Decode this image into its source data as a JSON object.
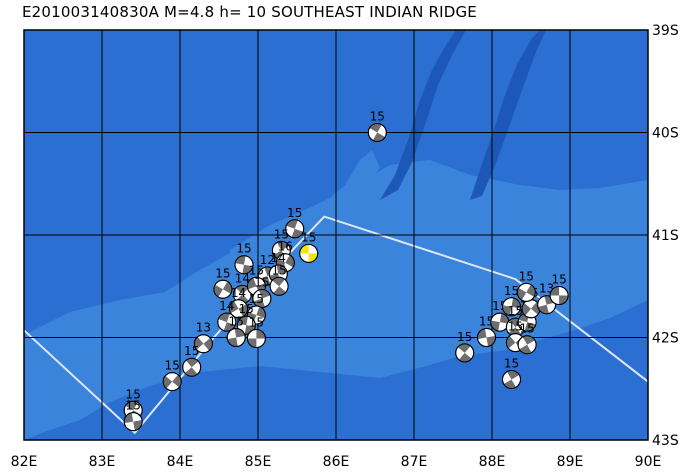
{
  "title": "E201003140830A M=4.8 h= 10 SOUTHEAST INDIAN RIDGE",
  "map": {
    "lon_range": [
      82,
      90
    ],
    "lat_range": [
      -43,
      -39
    ],
    "lon_ticks": [
      "82E",
      "83E",
      "84E",
      "85E",
      "86E",
      "87E",
      "88E",
      "89E",
      "90E"
    ],
    "lat_ticks": [
      "39S",
      "40S",
      "41S",
      "42S",
      "43S"
    ],
    "colors": {
      "ocean": "#2c6fd2",
      "shallow": "#3b84dc",
      "trench": "#1d57b8",
      "plate_boundary": "#dfe6f2",
      "grid": "#000000"
    }
  },
  "plate_boundary": [
    [
      82,
      -41.93
    ],
    [
      83.42,
      -42.93
    ],
    [
      84.4,
      -42.03
    ],
    [
      85.1,
      -41.42
    ],
    [
      85.85,
      -40.82
    ],
    [
      88.3,
      -41.43
    ],
    [
      90,
      -42.43
    ]
  ],
  "mechanisms": [
    {
      "lon": 86.53,
      "lat": -40.0,
      "label": "15",
      "highlight": false,
      "rot": 30
    },
    {
      "lon": 85.47,
      "lat": -40.94,
      "label": "15",
      "highlight": false,
      "rot": 200
    },
    {
      "lon": 85.3,
      "lat": -41.15,
      "label": "15",
      "highlight": false,
      "rot": 60
    },
    {
      "lon": 85.65,
      "lat": -41.18,
      "label": "15",
      "highlight": true,
      "rot": 0
    },
    {
      "lon": 85.35,
      "lat": -41.27,
      "label": "16",
      "highlight": false,
      "rot": 120
    },
    {
      "lon": 84.82,
      "lat": -41.29,
      "label": "15",
      "highlight": false,
      "rot": 10
    },
    {
      "lon": 85.12,
      "lat": -41.4,
      "label": "12",
      "highlight": false,
      "rot": 250
    },
    {
      "lon": 85.26,
      "lat": -41.38,
      "label": "14",
      "highlight": false,
      "rot": 80
    },
    {
      "lon": 84.55,
      "lat": -41.53,
      "label": "15",
      "highlight": false,
      "rot": 300
    },
    {
      "lon": 84.8,
      "lat": -41.58,
      "label": "14",
      "highlight": false,
      "rot": 45
    },
    {
      "lon": 84.98,
      "lat": -41.5,
      "label": "15",
      "highlight": false,
      "rot": 160
    },
    {
      "lon": 85.27,
      "lat": -41.5,
      "label": "15",
      "highlight": false,
      "rot": 220
    },
    {
      "lon": 85.05,
      "lat": -41.62,
      "label": "15",
      "highlight": false,
      "rot": 70
    },
    {
      "lon": 84.75,
      "lat": -41.72,
      "label": "14",
      "highlight": false,
      "rot": 330
    },
    {
      "lon": 84.98,
      "lat": -41.78,
      "label": "15",
      "highlight": false,
      "rot": 110
    },
    {
      "lon": 84.6,
      "lat": -41.85,
      "label": "14",
      "highlight": false,
      "rot": 20
    },
    {
      "lon": 84.85,
      "lat": -41.88,
      "label": "15",
      "highlight": false,
      "rot": 190
    },
    {
      "lon": 84.72,
      "lat": -42.0,
      "label": "15",
      "highlight": false,
      "rot": 260
    },
    {
      "lon": 84.98,
      "lat": -42.01,
      "label": "15",
      "highlight": false,
      "rot": 90
    },
    {
      "lon": 84.3,
      "lat": -42.06,
      "label": "13",
      "highlight": false,
      "rot": 140
    },
    {
      "lon": 84.15,
      "lat": -42.29,
      "label": "15",
      "highlight": false,
      "rot": 50
    },
    {
      "lon": 83.9,
      "lat": -42.43,
      "label": "15",
      "highlight": false,
      "rot": 310
    },
    {
      "lon": 83.4,
      "lat": -42.71,
      "label": "15",
      "highlight": false,
      "rot": 210
    },
    {
      "lon": 83.4,
      "lat": -42.82,
      "label": "15",
      "highlight": false,
      "rot": 350
    },
    {
      "lon": 87.65,
      "lat": -42.15,
      "label": "15",
      "highlight": false,
      "rot": 40
    },
    {
      "lon": 87.93,
      "lat": -42.0,
      "label": "15",
      "highlight": false,
      "rot": 170
    },
    {
      "lon": 88.1,
      "lat": -41.85,
      "label": "15",
      "highlight": false,
      "rot": 280
    },
    {
      "lon": 88.25,
      "lat": -41.7,
      "label": "15",
      "highlight": false,
      "rot": 100
    },
    {
      "lon": 88.3,
      "lat": -41.9,
      "label": "15",
      "highlight": false,
      "rot": 230
    },
    {
      "lon": 88.45,
      "lat": -41.85,
      "label": "14",
      "highlight": false,
      "rot": 15
    },
    {
      "lon": 88.5,
      "lat": -41.72,
      "label": "15",
      "highlight": false,
      "rot": 130
    },
    {
      "lon": 88.44,
      "lat": -41.56,
      "label": "15",
      "highlight": false,
      "rot": 300
    },
    {
      "lon": 88.7,
      "lat": -41.68,
      "label": "13",
      "highlight": false,
      "rot": 75
    },
    {
      "lon": 88.86,
      "lat": -41.59,
      "label": "15",
      "highlight": false,
      "rot": 180
    },
    {
      "lon": 88.3,
      "lat": -42.05,
      "label": "15",
      "highlight": false,
      "rot": 320
    },
    {
      "lon": 88.45,
      "lat": -42.07,
      "label": "15",
      "highlight": false,
      "rot": 60
    },
    {
      "lon": 88.25,
      "lat": -42.41,
      "label": "15",
      "highlight": false,
      "rot": 240
    }
  ]
}
